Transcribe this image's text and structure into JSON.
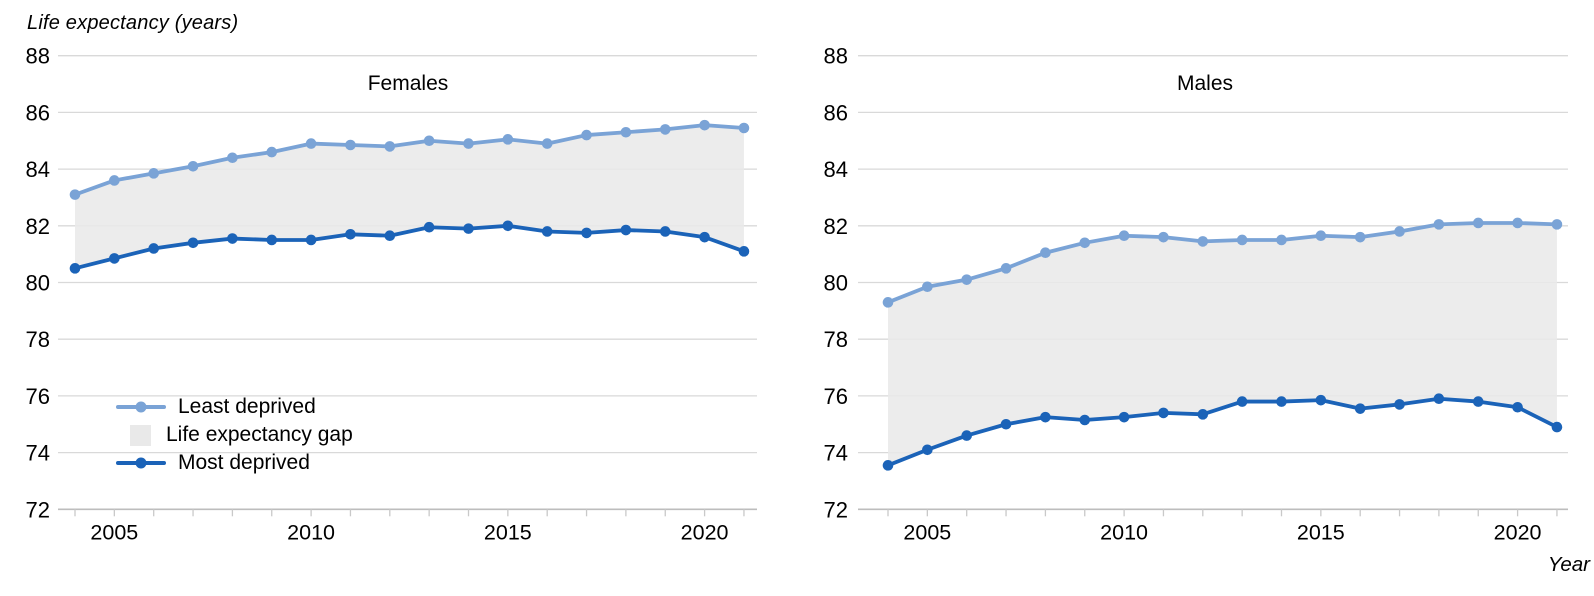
{
  "figure_title": "Life expectancy (years)",
  "x_axis_title": "Year",
  "legend": {
    "least_label": "Least deprived",
    "gap_label": "Life expectancy gap",
    "most_label": "Most deprived"
  },
  "colors": {
    "least_deprived": "#7aa3d6",
    "most_deprived": "#1b63b8",
    "gap_fill": "#e9e9e9",
    "gridline": "#d9d9d9",
    "axis_line": "#bdbdbd",
    "tick": "#c9c9c9",
    "text": "#000000"
  },
  "chart_data": [
    {
      "type": "line",
      "title": "Females",
      "x": [
        2004,
        2005,
        2006,
        2007,
        2008,
        2009,
        2010,
        2011,
        2012,
        2013,
        2014,
        2015,
        2016,
        2017,
        2018,
        2019,
        2020,
        2021
      ],
      "xticks_labeled": [
        2005,
        2010,
        2015,
        2020
      ],
      "ylim": [
        72,
        88
      ],
      "ytick_step": 2,
      "grid": true,
      "band_between_series_label": "Life expectancy gap",
      "series": [
        {
          "name": "Least deprived",
          "values": [
            83.1,
            83.6,
            83.85,
            84.1,
            84.4,
            84.6,
            84.9,
            84.85,
            84.8,
            85.0,
            84.9,
            85.05,
            84.9,
            85.2,
            85.3,
            85.4,
            85.55,
            85.45
          ]
        },
        {
          "name": "Most deprived",
          "values": [
            80.5,
            80.85,
            81.2,
            81.4,
            81.55,
            81.5,
            81.5,
            81.7,
            81.65,
            81.95,
            81.9,
            82.0,
            81.8,
            81.75,
            81.85,
            81.8,
            81.6,
            81.1
          ]
        }
      ]
    },
    {
      "type": "line",
      "title": "Males",
      "x": [
        2004,
        2005,
        2006,
        2007,
        2008,
        2009,
        2010,
        2011,
        2012,
        2013,
        2014,
        2015,
        2016,
        2017,
        2018,
        2019,
        2020,
        2021
      ],
      "xticks_labeled": [
        2005,
        2010,
        2015,
        2020
      ],
      "ylim": [
        72,
        88
      ],
      "ytick_step": 2,
      "grid": true,
      "band_between_series_label": "Life expectancy gap",
      "series": [
        {
          "name": "Least deprived",
          "values": [
            79.3,
            79.85,
            80.1,
            80.5,
            81.05,
            81.4,
            81.65,
            81.6,
            81.45,
            81.5,
            81.5,
            81.65,
            81.6,
            81.8,
            82.05,
            82.1,
            82.1,
            82.05
          ]
        },
        {
          "name": "Most deprived",
          "values": [
            73.55,
            74.1,
            74.6,
            75.0,
            75.25,
            75.15,
            75.25,
            75.4,
            75.35,
            75.8,
            75.8,
            75.85,
            75.55,
            75.7,
            75.9,
            75.8,
            75.6,
            74.9
          ]
        }
      ]
    }
  ]
}
